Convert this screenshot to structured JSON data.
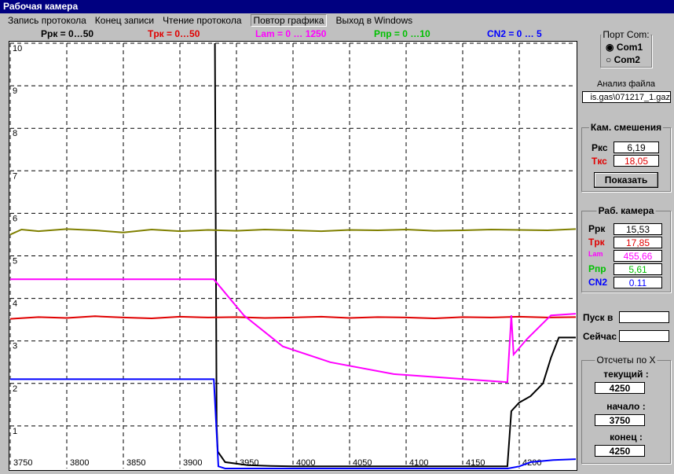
{
  "window": {
    "title": "Рабочая камера"
  },
  "menu": [
    "Запись протокола",
    "Конец записи",
    "Чтение протокола",
    "Повтор графика",
    "Выход в Windows"
  ],
  "chart_data": {
    "type": "line",
    "xlim": [
      3750,
      4250
    ],
    "ylim": [
      0,
      10
    ],
    "xticks": [
      3750,
      3800,
      3850,
      3900,
      3950,
      4000,
      4050,
      4100,
      4150,
      4200
    ],
    "yticks": [
      1,
      2,
      3,
      4,
      5,
      6,
      7,
      8,
      9,
      10
    ],
    "grid": true,
    "series": [
      {
        "name": "Pрк = 0…50",
        "color": "#000000",
        "legend_color": "#000000",
        "x": [
          3931,
          3932.5,
          3933.5,
          3940,
          3960,
          3980,
          4000,
          4100,
          4189.5,
          4193,
          4200,
          4210,
          4221,
          4228,
          4235,
          4250
        ],
        "values": [
          10,
          1.0,
          0.4,
          0.15,
          0.08,
          0.06,
          0.05,
          0.05,
          0.05,
          1.35,
          1.55,
          1.7,
          2.0,
          2.6,
          3.08,
          3.08
        ]
      },
      {
        "name": "Tрк = 0…50",
        "color": "#e00000",
        "legend_color": "#e00000",
        "x": [
          3750,
          3775,
          3800,
          3825,
          3850,
          3875,
          3900,
          3925,
          3950,
          3975,
          4000,
          4025,
          4050,
          4075,
          4100,
          4125,
          4150,
          4175,
          4200,
          4225,
          4250
        ],
        "values": [
          3.52,
          3.56,
          3.54,
          3.58,
          3.55,
          3.53,
          3.57,
          3.55,
          3.56,
          3.54,
          3.55,
          3.57,
          3.54,
          3.56,
          3.55,
          3.53,
          3.56,
          3.55,
          3.57,
          3.55,
          3.56
        ]
      },
      {
        "name": "Lam = 0 … 1250",
        "color": "#ff00ff",
        "legend_color": "#ff00ff",
        "x": [
          3750,
          3930,
          3956.5,
          3991,
          4033,
          4089,
          4189.5,
          4193,
          4195,
          4207,
          4228,
          4250
        ],
        "values": [
          4.45,
          4.45,
          3.6,
          2.87,
          2.5,
          2.22,
          2.03,
          3.6,
          2.68,
          3.05,
          3.6,
          3.64
        ]
      },
      {
        "name": "Pпр = 0 …10",
        "color": "#808000",
        "legend_color": "#00c000",
        "x": [
          3750,
          3760,
          3775,
          3800,
          3825,
          3850,
          3875,
          3900,
          3925,
          3950,
          3975,
          4000,
          4025,
          4050,
          4075,
          4100,
          4125,
          4150,
          4175,
          4200,
          4225,
          4250
        ],
        "values": [
          5.5,
          5.62,
          5.58,
          5.63,
          5.6,
          5.55,
          5.62,
          5.58,
          5.61,
          5.59,
          5.62,
          5.6,
          5.58,
          5.61,
          5.6,
          5.62,
          5.59,
          5.6,
          5.62,
          5.61,
          5.6,
          5.63
        ]
      },
      {
        "name": "CN2 = 0 … 5",
        "color": "#0000ff",
        "legend_color": "#0000ff",
        "x": [
          3750,
          3930,
          3934,
          3940,
          4190,
          4200,
          4210,
          4230,
          4250
        ],
        "values": [
          2.1,
          2.1,
          0.05,
          0,
          0,
          0.05,
          0.15,
          0.2,
          0.22
        ]
      }
    ]
  },
  "port": {
    "title": "Порт Com:",
    "options": [
      "Com1",
      "Com2"
    ]
  },
  "file": {
    "label": "Анализ файла",
    "value": "is.gas\\071217_1.gaz"
  },
  "mix": {
    "title": "Кам. смешения",
    "rows": [
      [
        "Pкс",
        "6,19"
      ],
      [
        "Tкс",
        "18,05"
      ]
    ],
    "button": "Показать"
  },
  "work": {
    "title": "Раб. камера",
    "rows": [
      [
        "Pрк",
        "15,53"
      ],
      [
        "Tрк",
        "17,85"
      ],
      [
        "Lam",
        "455,66"
      ],
      [
        "Pпр",
        "5,61"
      ],
      [
        "CN2",
        "0.11"
      ]
    ]
  },
  "start": {
    "label": "Пуск в"
  },
  "now": {
    "label": "Сейчас"
  },
  "counts": {
    "title": "Отсчеты по X",
    "rows": [
      [
        "текущий :",
        "4250"
      ],
      [
        "начало :",
        "3750"
      ],
      [
        "конец :",
        "4250"
      ]
    ]
  }
}
